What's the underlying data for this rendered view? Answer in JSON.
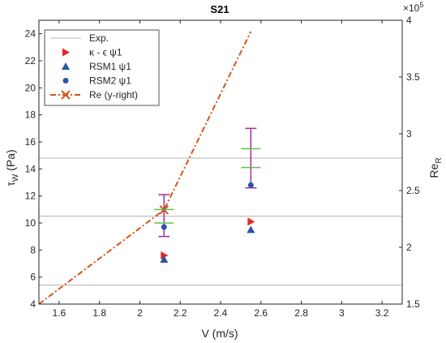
{
  "chart_data": {
    "type": "scatter",
    "title": "S21",
    "xlabel": "V  (m/s)",
    "ylabel_left": {
      "main": "τ",
      "sub": "W",
      "rest": " (Pa)"
    },
    "ylabel_right": {
      "main": "Re",
      "sub": "R"
    },
    "right_exponent": {
      "base": "×10",
      "power": "5"
    },
    "xlim": [
      1.5,
      3.3
    ],
    "ylim_left": [
      4,
      25
    ],
    "ylim_right": [
      150000,
      400000
    ],
    "xticks": [
      "1.6",
      "1.8",
      "2",
      "2.2",
      "2.4",
      "2.6",
      "2.8",
      "3",
      "3.2"
    ],
    "yticks_left": [
      "4",
      "6",
      "8",
      "10",
      "12",
      "14",
      "16",
      "18",
      "20",
      "22",
      "24"
    ],
    "yticks_right": [
      "1.5",
      "2",
      "2.5",
      "3",
      "3.5",
      "4"
    ],
    "grid": false,
    "legend_position": "top-left",
    "legend": [
      "Exp.",
      "κ - ϵ ψ1",
      "RSM1 ψ1",
      "RSM2 ψ1",
      "Re (y-right)"
    ],
    "colors": {
      "exp": "#b3b3b3",
      "ke": "#e8262a",
      "rsm1": "#2c54a4",
      "rsm2": "#2c54a4",
      "re": "#d95319",
      "errorbar": "#a0309b",
      "band": "#5ec34a"
    },
    "series": [
      {
        "name": "Exp.",
        "kind": "hline",
        "y": [
          5.4,
          10.5,
          14.8
        ]
      },
      {
        "name": "κ - ϵ ψ1",
        "marker": "triangle-right",
        "x": [
          2.12,
          2.55
        ],
        "y": [
          7.6,
          10.1
        ]
      },
      {
        "name": "RSM1 ψ1",
        "marker": "triangle-up",
        "x": [
          2.12,
          2.55
        ],
        "y": [
          7.3,
          9.5
        ]
      },
      {
        "name": "RSM2 ψ1",
        "marker": "circle",
        "x": [
          2.12,
          2.55
        ],
        "y": [
          9.7,
          12.8
        ]
      },
      {
        "name": "Re (y-right)",
        "marker": "x",
        "axis": "right",
        "x": [
          1.5,
          2.12,
          2.55
        ],
        "y": [
          150000,
          233000,
          390000
        ],
        "marked": [
          false,
          true,
          false
        ]
      }
    ],
    "errorbars": [
      {
        "x": 2.12,
        "low": 9.0,
        "high": 12.1,
        "band": [
          10.0,
          11.0
        ]
      },
      {
        "x": 2.55,
        "low": 12.6,
        "high": 17.0,
        "band": [
          14.1,
          15.5
        ]
      }
    ]
  }
}
